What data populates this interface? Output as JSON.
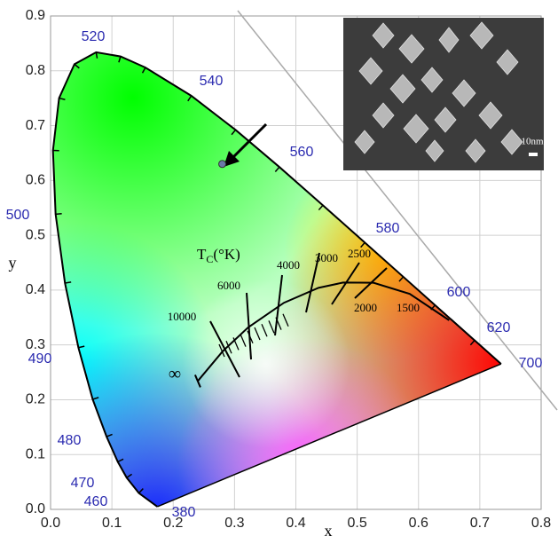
{
  "chart_data": {
    "type": "scatter",
    "x": [
      0.28
    ],
    "values": [
      0.63
    ],
    "color": "#6a78a8",
    "xlim": [
      0,
      0.8
    ],
    "ylim": [
      0,
      0.9
    ],
    "xticks": [
      {
        "value": 0,
        "label": "0.0"
      },
      0.1,
      0.2,
      0.3,
      0.4,
      0.5,
      0.6,
      0.7,
      0.8
    ],
    "yticks": [
      {
        "value": 0,
        "label": "0.0"
      },
      0.1,
      0.2,
      0.3,
      0.4,
      0.5,
      0.6,
      0.7,
      0.8,
      0.9
    ],
    "grid": true,
    "x_label": "x",
    "y_label": "y",
    "locus_labels": [
      "520",
      "540",
      "560",
      "580",
      "600",
      "620",
      "700",
      "500",
      "490",
      "480",
      "470",
      "460",
      "380"
    ],
    "temperature_title": {
      "main": "T",
      "sub": "C",
      "rest": "(°K)"
    },
    "temperature_labels": [
      "10000",
      "6000",
      "4000",
      "3000",
      "2500",
      "2000",
      "1500",
      "∞"
    ],
    "inset_scale_label": "10nm"
  }
}
